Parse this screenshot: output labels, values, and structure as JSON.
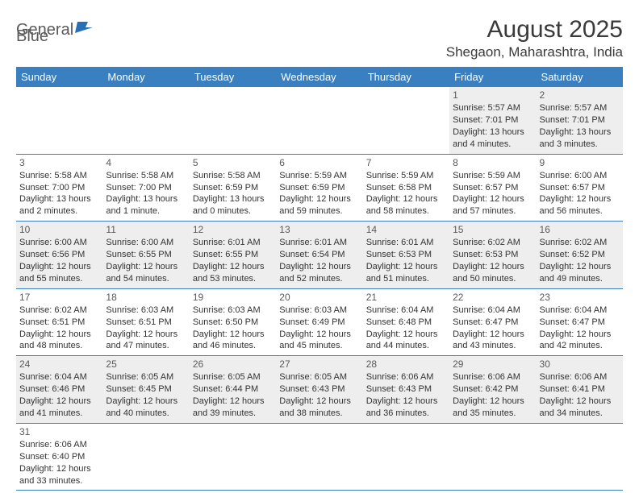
{
  "logo": {
    "part1": "General",
    "part2": "Blue"
  },
  "colors": {
    "header_bg": "#3a7fc0",
    "header_text": "#ffffff",
    "row_alt_bg": "#eeeeee",
    "rule": "#3a7fc0",
    "logo_blue": "#2a6fb5",
    "text": "#333333",
    "title": "#3a3a3a"
  },
  "title": "August 2025",
  "location": "Shegaon, Maharashtra, India",
  "weekdays": [
    "Sunday",
    "Monday",
    "Tuesday",
    "Wednesday",
    "Thursday",
    "Friday",
    "Saturday"
  ],
  "weeks": [
    [
      null,
      null,
      null,
      null,
      null,
      {
        "day": "1",
        "sunrise": "Sunrise: 5:57 AM",
        "sunset": "Sunset: 7:01 PM",
        "daylight": "Daylight: 13 hours and 4 minutes."
      },
      {
        "day": "2",
        "sunrise": "Sunrise: 5:57 AM",
        "sunset": "Sunset: 7:01 PM",
        "daylight": "Daylight: 13 hours and 3 minutes."
      }
    ],
    [
      {
        "day": "3",
        "sunrise": "Sunrise: 5:58 AM",
        "sunset": "Sunset: 7:00 PM",
        "daylight": "Daylight: 13 hours and 2 minutes."
      },
      {
        "day": "4",
        "sunrise": "Sunrise: 5:58 AM",
        "sunset": "Sunset: 7:00 PM",
        "daylight": "Daylight: 13 hours and 1 minute."
      },
      {
        "day": "5",
        "sunrise": "Sunrise: 5:58 AM",
        "sunset": "Sunset: 6:59 PM",
        "daylight": "Daylight: 13 hours and 0 minutes."
      },
      {
        "day": "6",
        "sunrise": "Sunrise: 5:59 AM",
        "sunset": "Sunset: 6:59 PM",
        "daylight": "Daylight: 12 hours and 59 minutes."
      },
      {
        "day": "7",
        "sunrise": "Sunrise: 5:59 AM",
        "sunset": "Sunset: 6:58 PM",
        "daylight": "Daylight: 12 hours and 58 minutes."
      },
      {
        "day": "8",
        "sunrise": "Sunrise: 5:59 AM",
        "sunset": "Sunset: 6:57 PM",
        "daylight": "Daylight: 12 hours and 57 minutes."
      },
      {
        "day": "9",
        "sunrise": "Sunrise: 6:00 AM",
        "sunset": "Sunset: 6:57 PM",
        "daylight": "Daylight: 12 hours and 56 minutes."
      }
    ],
    [
      {
        "day": "10",
        "sunrise": "Sunrise: 6:00 AM",
        "sunset": "Sunset: 6:56 PM",
        "daylight": "Daylight: 12 hours and 55 minutes."
      },
      {
        "day": "11",
        "sunrise": "Sunrise: 6:00 AM",
        "sunset": "Sunset: 6:55 PM",
        "daylight": "Daylight: 12 hours and 54 minutes."
      },
      {
        "day": "12",
        "sunrise": "Sunrise: 6:01 AM",
        "sunset": "Sunset: 6:55 PM",
        "daylight": "Daylight: 12 hours and 53 minutes."
      },
      {
        "day": "13",
        "sunrise": "Sunrise: 6:01 AM",
        "sunset": "Sunset: 6:54 PM",
        "daylight": "Daylight: 12 hours and 52 minutes."
      },
      {
        "day": "14",
        "sunrise": "Sunrise: 6:01 AM",
        "sunset": "Sunset: 6:53 PM",
        "daylight": "Daylight: 12 hours and 51 minutes."
      },
      {
        "day": "15",
        "sunrise": "Sunrise: 6:02 AM",
        "sunset": "Sunset: 6:53 PM",
        "daylight": "Daylight: 12 hours and 50 minutes."
      },
      {
        "day": "16",
        "sunrise": "Sunrise: 6:02 AM",
        "sunset": "Sunset: 6:52 PM",
        "daylight": "Daylight: 12 hours and 49 minutes."
      }
    ],
    [
      {
        "day": "17",
        "sunrise": "Sunrise: 6:02 AM",
        "sunset": "Sunset: 6:51 PM",
        "daylight": "Daylight: 12 hours and 48 minutes."
      },
      {
        "day": "18",
        "sunrise": "Sunrise: 6:03 AM",
        "sunset": "Sunset: 6:51 PM",
        "daylight": "Daylight: 12 hours and 47 minutes."
      },
      {
        "day": "19",
        "sunrise": "Sunrise: 6:03 AM",
        "sunset": "Sunset: 6:50 PM",
        "daylight": "Daylight: 12 hours and 46 minutes."
      },
      {
        "day": "20",
        "sunrise": "Sunrise: 6:03 AM",
        "sunset": "Sunset: 6:49 PM",
        "daylight": "Daylight: 12 hours and 45 minutes."
      },
      {
        "day": "21",
        "sunrise": "Sunrise: 6:04 AM",
        "sunset": "Sunset: 6:48 PM",
        "daylight": "Daylight: 12 hours and 44 minutes."
      },
      {
        "day": "22",
        "sunrise": "Sunrise: 6:04 AM",
        "sunset": "Sunset: 6:47 PM",
        "daylight": "Daylight: 12 hours and 43 minutes."
      },
      {
        "day": "23",
        "sunrise": "Sunrise: 6:04 AM",
        "sunset": "Sunset: 6:47 PM",
        "daylight": "Daylight: 12 hours and 42 minutes."
      }
    ],
    [
      {
        "day": "24",
        "sunrise": "Sunrise: 6:04 AM",
        "sunset": "Sunset: 6:46 PM",
        "daylight": "Daylight: 12 hours and 41 minutes."
      },
      {
        "day": "25",
        "sunrise": "Sunrise: 6:05 AM",
        "sunset": "Sunset: 6:45 PM",
        "daylight": "Daylight: 12 hours and 40 minutes."
      },
      {
        "day": "26",
        "sunrise": "Sunrise: 6:05 AM",
        "sunset": "Sunset: 6:44 PM",
        "daylight": "Daylight: 12 hours and 39 minutes."
      },
      {
        "day": "27",
        "sunrise": "Sunrise: 6:05 AM",
        "sunset": "Sunset: 6:43 PM",
        "daylight": "Daylight: 12 hours and 38 minutes."
      },
      {
        "day": "28",
        "sunrise": "Sunrise: 6:06 AM",
        "sunset": "Sunset: 6:43 PM",
        "daylight": "Daylight: 12 hours and 36 minutes."
      },
      {
        "day": "29",
        "sunrise": "Sunrise: 6:06 AM",
        "sunset": "Sunset: 6:42 PM",
        "daylight": "Daylight: 12 hours and 35 minutes."
      },
      {
        "day": "30",
        "sunrise": "Sunrise: 6:06 AM",
        "sunset": "Sunset: 6:41 PM",
        "daylight": "Daylight: 12 hours and 34 minutes."
      }
    ],
    [
      {
        "day": "31",
        "sunrise": "Sunrise: 6:06 AM",
        "sunset": "Sunset: 6:40 PM",
        "daylight": "Daylight: 12 hours and 33 minutes."
      },
      null,
      null,
      null,
      null,
      null,
      null
    ]
  ]
}
